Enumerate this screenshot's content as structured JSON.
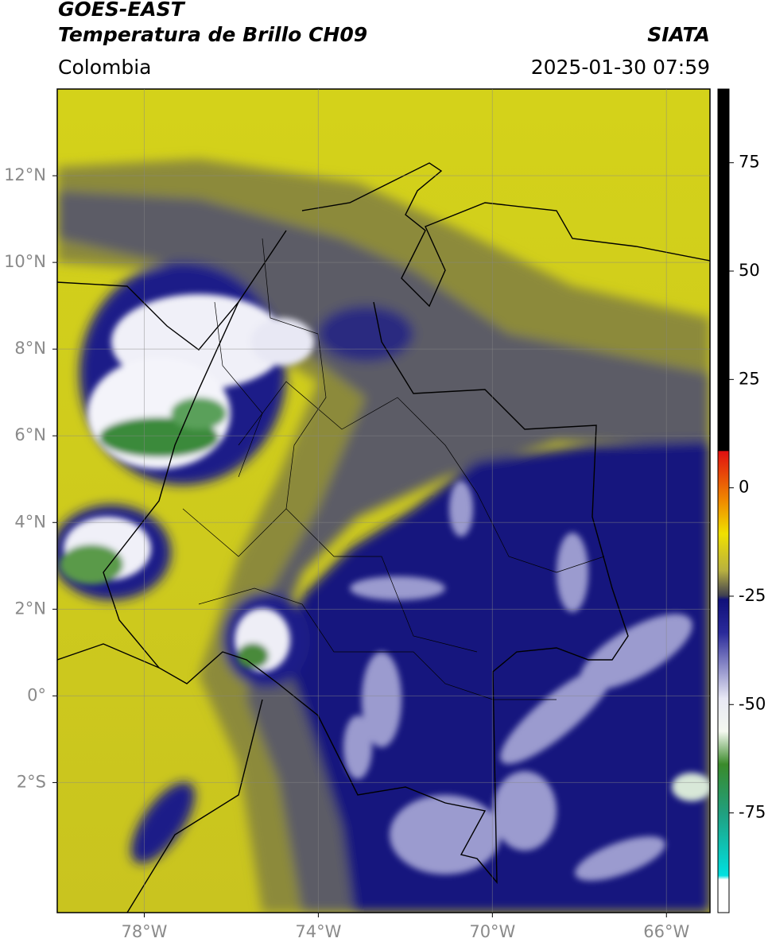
{
  "chart_data": {
    "type": "map",
    "title": "GOES-EAST",
    "subtitle": "Temperatura de Brillo CH09",
    "region": "Colombia",
    "source": "SIATA",
    "timestamp": "2025-01-30 07:59",
    "xlim": [
      -80,
      -65
    ],
    "ylim": [
      -5,
      14
    ],
    "xticks": [
      {
        "value": -78,
        "label": "78°W"
      },
      {
        "value": -74,
        "label": "74°W"
      },
      {
        "value": -70,
        "label": "70°W"
      },
      {
        "value": -66,
        "label": "66°W"
      }
    ],
    "yticks": [
      {
        "value": 12,
        "label": "12°N"
      },
      {
        "value": 10,
        "label": "10°N"
      },
      {
        "value": 8,
        "label": "8°N"
      },
      {
        "value": 6,
        "label": "6°N"
      },
      {
        "value": 4,
        "label": "4°N"
      },
      {
        "value": 2,
        "label": "2°N"
      },
      {
        "value": 0,
        "label": "0°"
      },
      {
        "value": -2,
        "label": "2°S"
      }
    ],
    "grid": true,
    "colorbar": {
      "lim": [
        -98,
        92
      ],
      "ticks": [
        75,
        50,
        25,
        0,
        -25,
        -50,
        -75
      ]
    }
  }
}
